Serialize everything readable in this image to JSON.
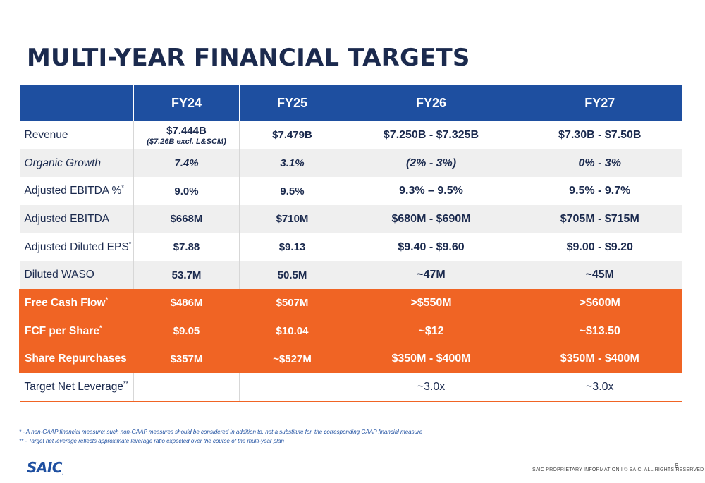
{
  "title": "MULTI-YEAR FINANCIAL TARGETS",
  "header": [
    "",
    "FY24",
    "FY25",
    "FY26",
    "FY27"
  ],
  "rows": [
    {
      "label": "Revenue",
      "fy24": "$7.444B",
      "fy24_note": "($7.26B excl. L&SCM)",
      "fy25": "$7.479B",
      "fy26": "$7.250B - $7.325B",
      "fy27": "$7.30B - $7.50B"
    },
    {
      "label": "Organic Growth",
      "fy24": "7.4%",
      "fy25": "3.1%",
      "fy26": "(2% - 3%)",
      "fy27": "0% - 3%"
    },
    {
      "label": "Adjusted EBITDA %",
      "sup": "*",
      "fy24": "9.0%",
      "fy25": "9.5%",
      "fy26": "9.3% – 9.5%",
      "fy27": "9.5% - 9.7%"
    },
    {
      "label": "Adjusted EBITDA",
      "fy24": "$668M",
      "fy25": "$710M",
      "fy26": "$680M - $690M",
      "fy27": "$705M - $715M"
    },
    {
      "label": "Adjusted Diluted EPS",
      "sup": "*",
      "fy24": "$7.88",
      "fy25": "$9.13",
      "fy26": "$9.40 - $9.60",
      "fy27": "$9.00 - $9.20"
    },
    {
      "label": "Diluted WASO",
      "fy24": "53.7M",
      "fy25": "50.5M",
      "fy26": "~47M",
      "fy27": "~45M"
    },
    {
      "label": "Free Cash Flow",
      "sup": "*",
      "fy24": "$486M",
      "fy25": "$507M",
      "fy26": ">$550M",
      "fy27": ">$600M"
    },
    {
      "label": "FCF per Share",
      "sup": "*",
      "fy24": "$9.05",
      "fy25": "$10.04",
      "fy26": "~$12",
      "fy27": "~$13.50"
    },
    {
      "label": "Share Repurchases",
      "fy24": "$357M",
      "fy25": "~$527M",
      "fy26": "$350M - $400M",
      "fy27": "$350M - $400M"
    },
    {
      "label": "Target Net Leverage",
      "sup": "**",
      "fy24": "",
      "fy25": "",
      "fy26": "~3.0x",
      "fy27": "~3.0x"
    }
  ],
  "footnotes": [
    "* - A non-GAAP financial measure; such non-GAAP measures should be considered in addition to, not a substitute for, the corresponding GAAP financial measure",
    "** - Target net leverage reflects approximate leverage ratio expected over the course of the multi-year plan"
  ],
  "logo": "SAIC",
  "logo_mark": ".",
  "footer": "SAIC PROPRIETARY INFORMATION  I  © SAIC. ALL RIGHTS RESERVED",
  "page_number": "8",
  "colors": {
    "navy": "#1b2a4e",
    "blue": "#1e4fa0",
    "orange": "#f06424",
    "grey": "#efefef"
  }
}
